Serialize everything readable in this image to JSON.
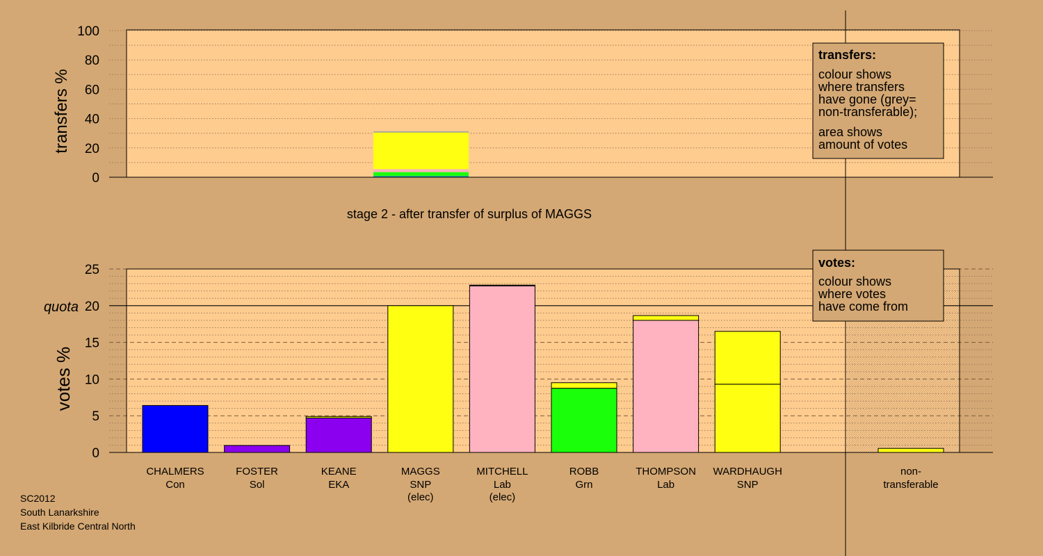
{
  "colors": {
    "background": "#D4A874",
    "plot_area": "#FFCC8F",
    "hatch_area": "#C89E6E",
    "blue": "#0000FF",
    "purple": "#8B00EE",
    "yellow": "#FFFF11",
    "pink": "#FFB3C1",
    "green": "#1AFF0A",
    "grey": "#A0A0A0",
    "teal": "#1FA89A"
  },
  "footer": {
    "line1": "SC2012",
    "line2": "South Lanarkshire",
    "line3": "East Kilbride Central North"
  },
  "stage_title": "stage 2 - after transfer of surplus of MAGGS",
  "transfers_legend": {
    "heading": "transfers:",
    "lines1": [
      "colour shows",
      "where transfers",
      "have gone (grey=",
      "non-transferable);"
    ],
    "lines2": [
      "area shows",
      "amount of votes"
    ]
  },
  "votes_legend": {
    "heading": "votes:",
    "lines": [
      "colour shows",
      "where votes",
      "have come from"
    ]
  },
  "chart_data": [
    {
      "type": "bar",
      "ylabel": "transfers %",
      "ylim": [
        0,
        100
      ],
      "yticks": [
        0,
        20,
        40,
        60,
        80,
        100
      ],
      "grid": true,
      "bars": [
        {
          "candidate": "MAGGS",
          "segments": [
            {
              "color": "teal",
              "value": 1
            },
            {
              "color": "green",
              "value": 2.5
            },
            {
              "color": "pink",
              "value": 2
            },
            {
              "color": "yellow",
              "value": 25
            },
            {
              "color": "grey",
              "value": 0.8
            }
          ]
        }
      ]
    },
    {
      "type": "bar",
      "ylabel": "votes %",
      "ylim": [
        0,
        25
      ],
      "yticks": [
        0,
        5,
        10,
        15,
        20,
        25
      ],
      "quota": 20,
      "quota_label": "quota",
      "grid": true,
      "categories": [
        {
          "name": "CHALMERS",
          "party": "Con",
          "note": ""
        },
        {
          "name": "FOSTER",
          "party": "Sol",
          "note": ""
        },
        {
          "name": "KEANE",
          "party": "EKA",
          "note": ""
        },
        {
          "name": "MAGGS",
          "party": "SNP",
          "note": "(elec)"
        },
        {
          "name": "MITCHELL",
          "party": "Lab",
          "note": "(elec)"
        },
        {
          "name": "ROBB",
          "party": "Grn",
          "note": ""
        },
        {
          "name": "THOMPSON",
          "party": "Lab",
          "note": ""
        },
        {
          "name": "WARDHAUGH",
          "party": "SNP",
          "note": ""
        }
      ],
      "non_transferable_label": [
        "non-",
        "transferable"
      ],
      "bars": [
        {
          "segments": [
            {
              "color": "blue",
              "value": 6.4
            },
            {
              "color": "yellow",
              "value": 0.0
            }
          ]
        },
        {
          "segments": [
            {
              "color": "purple",
              "value": 0.95
            },
            {
              "color": "yellow",
              "value": 0.0
            }
          ]
        },
        {
          "segments": [
            {
              "color": "purple",
              "value": 4.7
            },
            {
              "color": "yellow",
              "value": 0.2
            }
          ]
        },
        {
          "segments": [
            {
              "color": "yellow",
              "value": 20.0
            }
          ]
        },
        {
          "segments": [
            {
              "color": "pink",
              "value": 22.7
            },
            {
              "color": "yellow",
              "value": 0.1
            }
          ]
        },
        {
          "segments": [
            {
              "color": "green",
              "value": 8.75
            },
            {
              "color": "yellow",
              "value": 0.75
            }
          ]
        },
        {
          "segments": [
            {
              "color": "pink",
              "value": 18.0
            },
            {
              "color": "yellow",
              "value": 0.65
            }
          ]
        },
        {
          "segments": [
            {
              "color": "yellow",
              "value": 9.3
            },
            {
              "color": "yellow",
              "value": 7.2
            }
          ]
        }
      ],
      "non_transferable": {
        "segments": [
          {
            "color": "yellow",
            "value": 0.55
          }
        ]
      }
    }
  ]
}
